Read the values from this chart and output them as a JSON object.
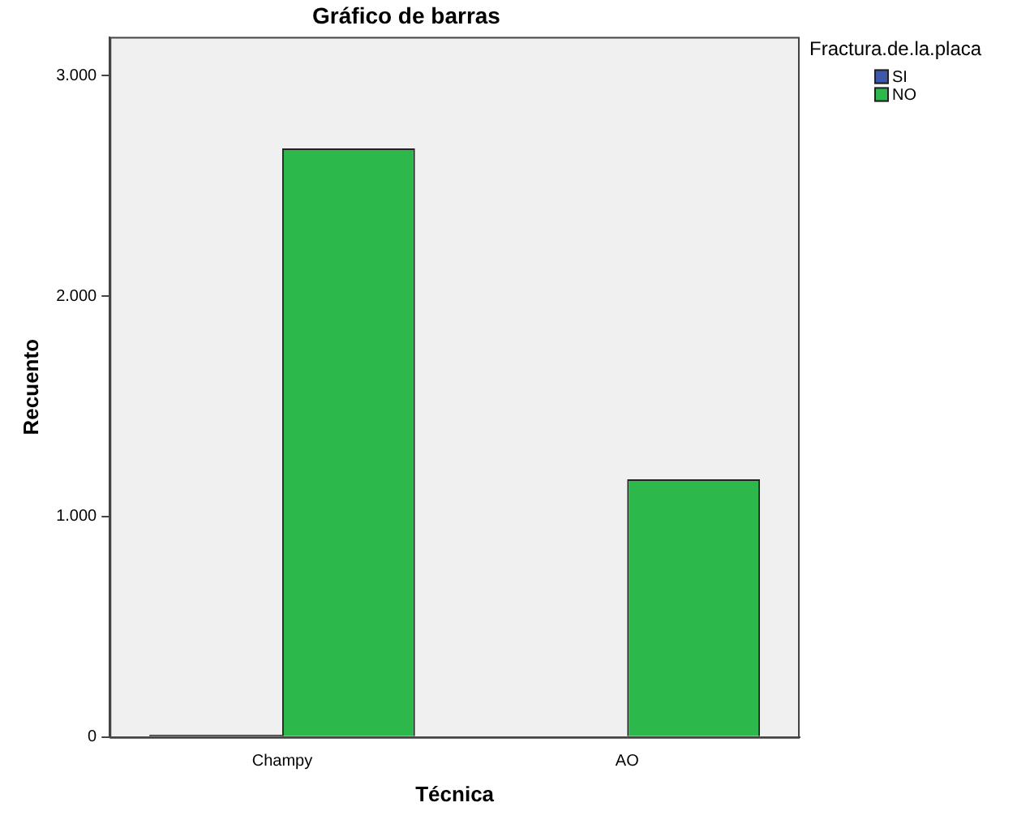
{
  "chart_data": {
    "type": "bar",
    "title": "Gráfico de barras",
    "xlabel": "Técnica",
    "ylabel": "Recuento",
    "legend_title": "Fractura.de.la.placa",
    "categories": [
      "Champy",
      "AO"
    ],
    "series": [
      {
        "name": "SI",
        "color": "#3e58ac",
        "values": [
          10,
          0
        ]
      },
      {
        "name": "NO",
        "color": "#2db84c",
        "values": [
          2670,
          1169
        ]
      }
    ],
    "ylim": [
      0,
      3175
    ],
    "yticks": [
      {
        "value": 0,
        "label": "0"
      },
      {
        "value": 1000,
        "label": "1.000"
      },
      {
        "value": 2000,
        "label": "2.000"
      },
      {
        "value": 3000,
        "label": "3.000"
      }
    ],
    "grid": false,
    "legend": "top right"
  }
}
